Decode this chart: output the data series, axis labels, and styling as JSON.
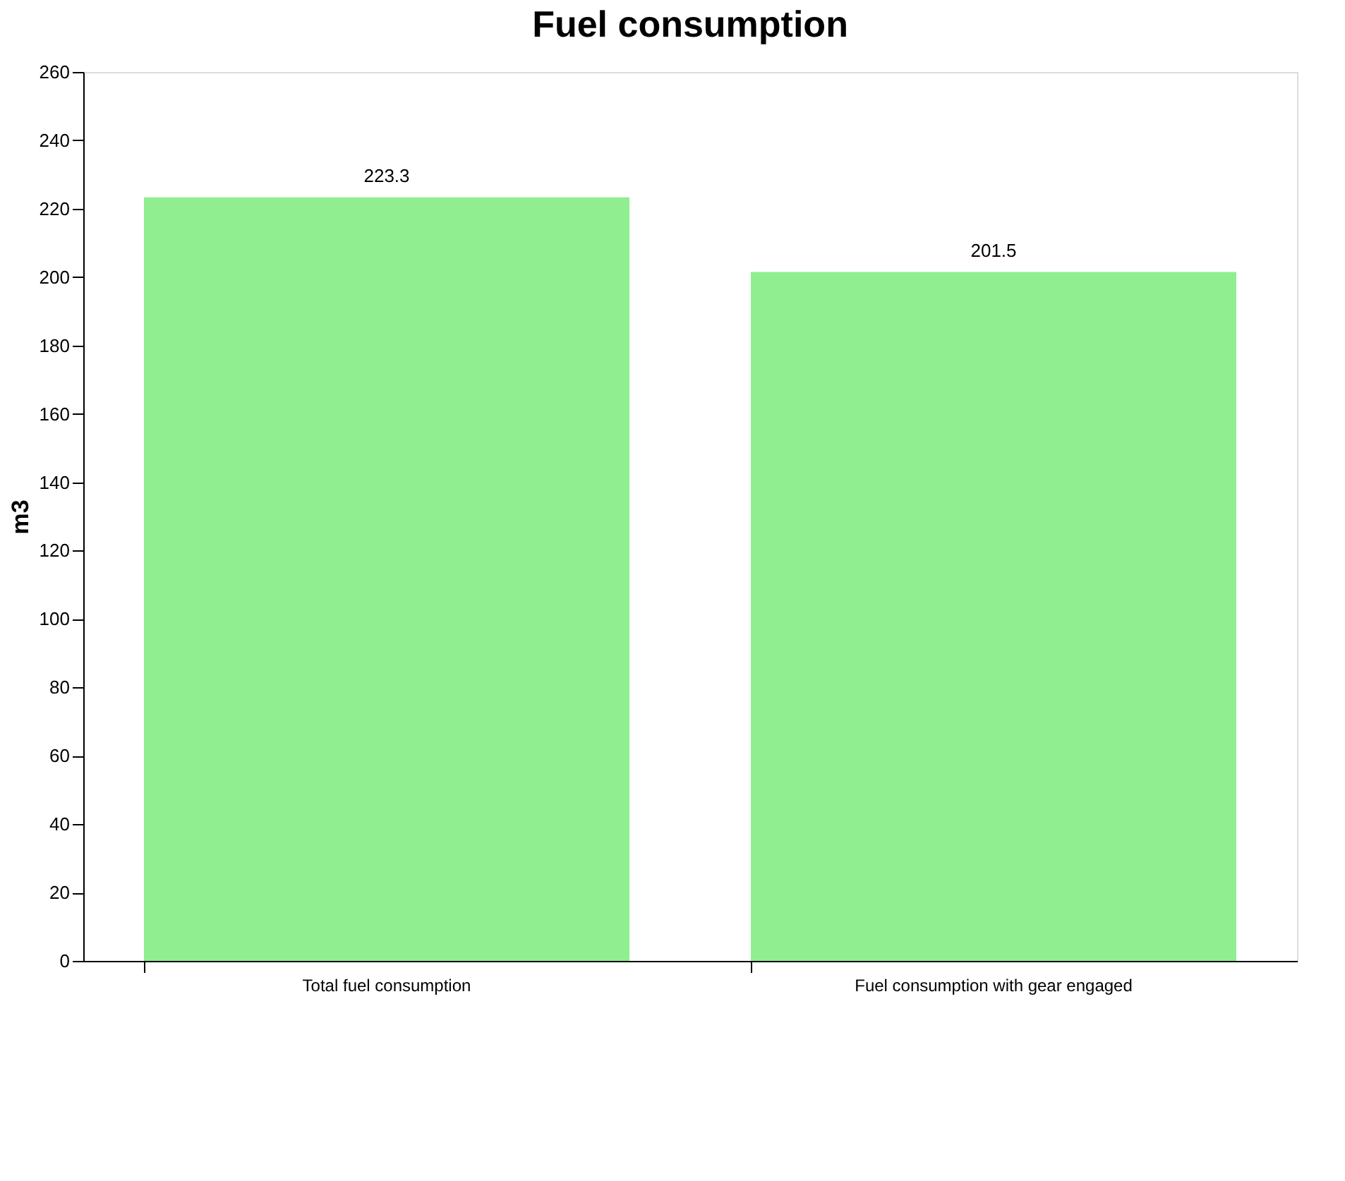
{
  "chart_data": {
    "type": "bar",
    "title": "Fuel consumption",
    "ylabel": "m3",
    "categories": [
      "Total fuel consumption",
      "Fuel consumption with gear engaged"
    ],
    "values": [
      223.3,
      201.5
    ],
    "color": "#90ee90",
    "ylim": [
      0,
      260
    ],
    "yticks": [
      0,
      20,
      40,
      60,
      80,
      100,
      120,
      140,
      160,
      180,
      200,
      220,
      240,
      260
    ],
    "grid": false,
    "data_labels": true
  }
}
